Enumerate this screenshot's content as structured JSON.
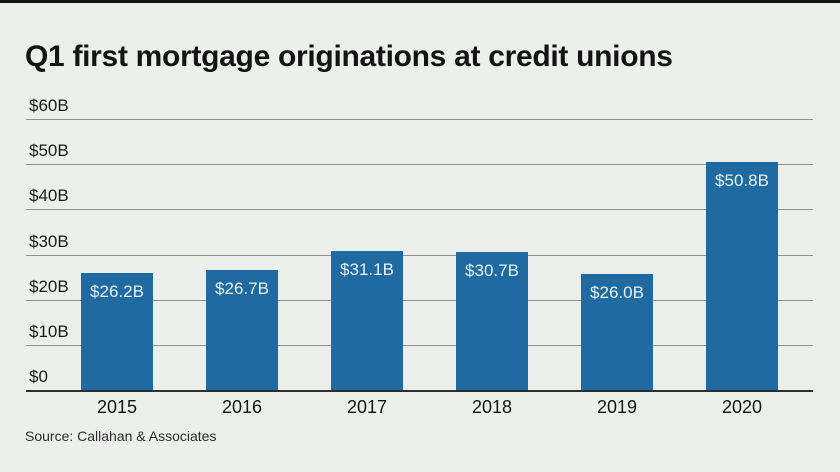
{
  "page": {
    "background_color": "#edefed",
    "top_rule_color": "#151515"
  },
  "title": "Q1 first mortgage originations at credit unions",
  "source": "Source: Callahan & Associates",
  "chart_data": {
    "type": "bar",
    "title": "Q1 first mortgage originations at credit unions",
    "categories": [
      "2015",
      "2016",
      "2017",
      "2018",
      "2019",
      "2020"
    ],
    "values": [
      26.2,
      26.7,
      31.1,
      30.7,
      26.0,
      50.8
    ],
    "bar_labels": [
      "$26.2B",
      "$26.7B",
      "$31.1B",
      "$30.7B",
      "$26.0B",
      "$50.8B"
    ],
    "xlabel": "",
    "ylabel": "",
    "ylim": [
      0,
      60
    ],
    "ytick_step": 10,
    "ytick_labels": [
      "$0",
      "$10B",
      "$20B",
      "$30B",
      "$40B",
      "$50B",
      "$60B"
    ],
    "grid": true,
    "legend": "none",
    "bar_color": "#1f6aa1",
    "bar_value_label_color": "#e9f0f6",
    "gridline_color": "#909090",
    "baseline_color": "#2e2e2e",
    "source": "Source: Callahan & Associates"
  }
}
